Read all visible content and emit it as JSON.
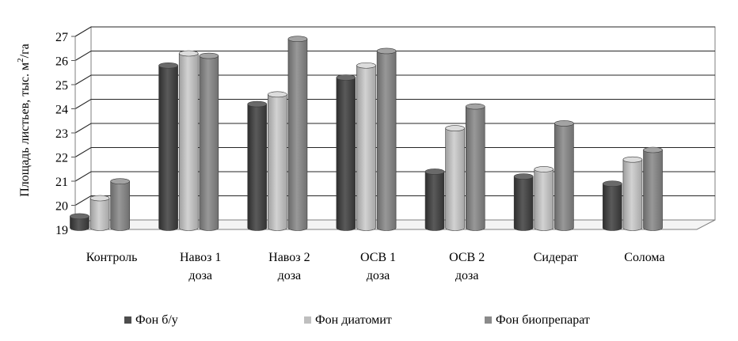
{
  "chart_data": {
    "type": "bar",
    "ylabel_main": "Площадь листьев, тыс. м",
    "ylabel_sup": "2",
    "ylabel_tail": "/га",
    "ylim": [
      19,
      27
    ],
    "yticks": [
      "19",
      "20",
      "21",
      "22",
      "23",
      "24",
      "25",
      "26",
      "27"
    ],
    "grid": true,
    "legend_position": "bottom",
    "categories": [
      [
        "Контроль"
      ],
      [
        "Навоз 1",
        "доза"
      ],
      [
        "Навоз 2",
        "доза"
      ],
      [
        "ОСВ 1",
        "доза"
      ],
      [
        "ОСВ 2",
        "доза"
      ],
      [
        "Сидерат"
      ],
      [
        "Солома"
      ]
    ],
    "series": [
      {
        "name": "Фон б/у",
        "color": "#4d4d4d",
        "values": [
          19.25,
          25.5,
          23.9,
          25.0,
          21.1,
          20.9,
          20.6
        ]
      },
      {
        "name": "Фон диатомит",
        "color": "#bfbfbf",
        "values": [
          20.0,
          26.0,
          24.3,
          25.5,
          22.9,
          21.2,
          21.6
        ]
      },
      {
        "name": "Фон биопрепарат",
        "color": "#8a8a8a",
        "values": [
          20.7,
          25.9,
          26.6,
          26.1,
          23.8,
          23.1,
          22.0
        ]
      }
    ]
  }
}
